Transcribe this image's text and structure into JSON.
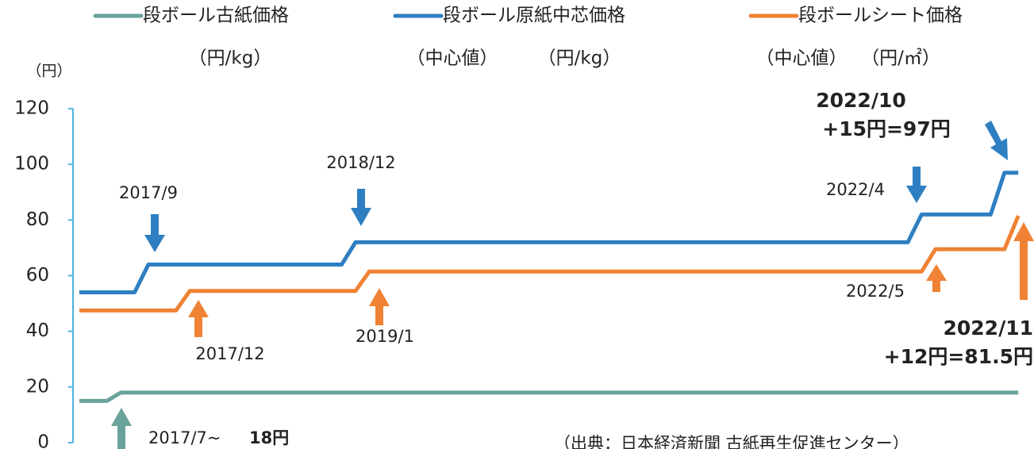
{
  "chart_data": {
    "type": "line",
    "y_label": "（円）",
    "categories": [
      null,
      null,
      null,
      null,
      null,
      null,
      null,
      null,
      null,
      null,
      null,
      null,
      null,
      null,
      null,
      null,
      null,
      null,
      null,
      null,
      null,
      null,
      null,
      null,
      null,
      null,
      null,
      null,
      null,
      null,
      null,
      null,
      null,
      null,
      null,
      null,
      null,
      null,
      null,
      null,
      null,
      null,
      null,
      null,
      null,
      null,
      null,
      null,
      null,
      null,
      null,
      null,
      null,
      null,
      null,
      null,
      null,
      null,
      null,
      null,
      null,
      null,
      null,
      null,
      null,
      null,
      null,
      null,
      null
    ],
    "series": [
      {
        "name": "段ボール古紙価格",
        "legend_notes": [
          "（円/kg）"
        ],
        "color": "#6aa39b",
        "values": [
          15,
          15,
          15,
          18,
          18,
          18,
          18,
          18,
          18,
          18,
          18,
          18,
          18,
          18,
          18,
          18,
          18,
          18,
          18,
          18,
          18,
          18,
          18,
          18,
          18,
          18,
          18,
          18,
          18,
          18,
          18,
          18,
          18,
          18,
          18,
          18,
          18,
          18,
          18,
          18,
          18,
          18,
          18,
          18,
          18,
          18,
          18,
          18,
          18,
          18,
          18,
          18,
          18,
          18,
          18,
          18,
          18,
          18,
          18,
          18,
          18,
          18,
          18,
          18,
          18,
          18,
          18,
          18,
          18
        ]
      },
      {
        "name": "段ボール原紙中芯価格",
        "legend_notes": [
          "（中心値）",
          "（円/kg）"
        ],
        "color": "#2e7fc1",
        "values": [
          54,
          54,
          54,
          54,
          54,
          64,
          64,
          64,
          64,
          64,
          64,
          64,
          64,
          64,
          64,
          64,
          64,
          64,
          64,
          64,
          72,
          72,
          72,
          72,
          72,
          72,
          72,
          72,
          72,
          72,
          72,
          72,
          72,
          72,
          72,
          72,
          72,
          72,
          72,
          72,
          72,
          72,
          72,
          72,
          72,
          72,
          72,
          72,
          72,
          72,
          72,
          72,
          72,
          72,
          72,
          72,
          72,
          72,
          72,
          72,
          72,
          82,
          82,
          82,
          82,
          82,
          82,
          97,
          97
        ]
      },
      {
        "name": "段ボールシート価格",
        "legend_notes": [
          "（中心値）",
          "（円/㎡）"
        ],
        "color": "#ef8234",
        "values": [
          47.5,
          47.5,
          47.5,
          47.5,
          47.5,
          47.5,
          47.5,
          47.5,
          54.5,
          54.5,
          54.5,
          54.5,
          54.5,
          54.5,
          54.5,
          54.5,
          54.5,
          54.5,
          54.5,
          54.5,
          54.5,
          61.5,
          61.5,
          61.5,
          61.5,
          61.5,
          61.5,
          61.5,
          61.5,
          61.5,
          61.5,
          61.5,
          61.5,
          61.5,
          61.5,
          61.5,
          61.5,
          61.5,
          61.5,
          61.5,
          61.5,
          61.5,
          61.5,
          61.5,
          61.5,
          61.5,
          61.5,
          61.5,
          61.5,
          61.5,
          61.5,
          61.5,
          61.5,
          61.5,
          61.5,
          61.5,
          61.5,
          61.5,
          61.5,
          61.5,
          61.5,
          61.5,
          69.5,
          69.5,
          69.5,
          69.5,
          69.5,
          69.5,
          81.5
        ]
      }
    ],
    "ylim": [
      0,
      120
    ],
    "yticks": [
      0,
      20,
      40,
      60,
      80,
      100,
      120
    ],
    "axis_color": "#4fb3e0",
    "annotations": [
      "2017/9",
      "2018/12",
      "2022/4",
      "2022/10",
      "+15円=97円",
      "2017/12",
      "2019/1",
      "2022/5",
      "2022/11",
      "+12円=81.5円",
      "2017/7~",
      "18円",
      "（出典：日本経済新聞 古紙再生促進センター）"
    ]
  }
}
